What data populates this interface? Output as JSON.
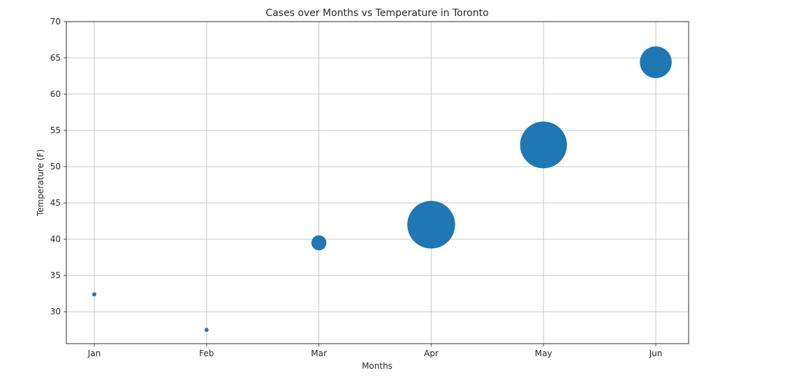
{
  "chart_data": {
    "type": "scatter",
    "title": "Cases over Months vs Temperature in Toronto",
    "xlabel": "Months",
    "ylabel": "Temperature (F)",
    "categories": [
      "Jan",
      "Feb",
      "Mar",
      "Apr",
      "May",
      "Jun"
    ],
    "y_values": [
      32.4,
      27.5,
      39.5,
      42.0,
      53.0,
      64.4
    ],
    "bubble_size_relative": [
      0.006,
      0.006,
      0.08,
      0.81,
      0.78,
      0.36
    ],
    "ylim": [
      25.6,
      70
    ],
    "yticks": [
      30,
      35,
      40,
      45,
      50,
      55,
      60,
      65,
      70
    ],
    "grid": true,
    "color": "#1f77b4"
  }
}
